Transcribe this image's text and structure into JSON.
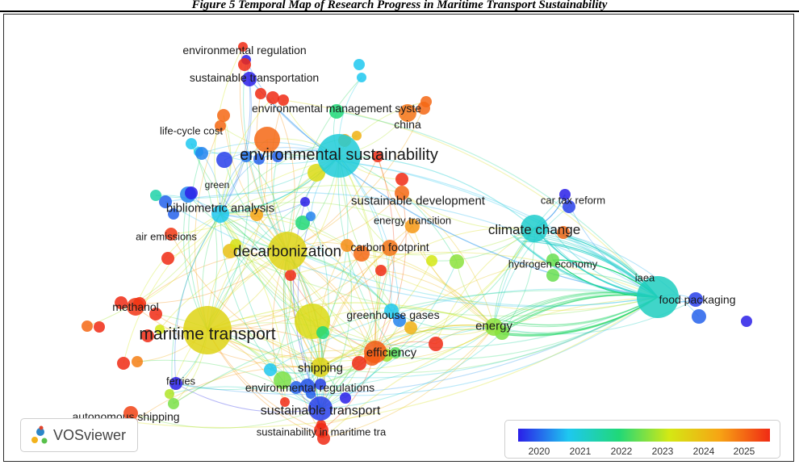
{
  "caption": "Figure 5 Temporal Map of Research Progress in Maritime Transport Sustainability",
  "app": {
    "name": "VOSviewer",
    "logo_icon": "vosviewer-logo-icon"
  },
  "legend": {
    "years": [
      "2020",
      "2021",
      "2022",
      "2023",
      "2024",
      "2025"
    ],
    "colors": [
      "#2a1ee8",
      "#1ec8f0",
      "#20d878",
      "#d4e814",
      "#f7a414",
      "#f02a14"
    ]
  },
  "nodes": [
    {
      "label": "environmental regulation",
      "year": 2025
    },
    {
      "label": "sustainable transportation",
      "year": 2020
    },
    {
      "label": "environmental management syste",
      "year": 2022
    },
    {
      "label": "china",
      "year": 2024.4
    },
    {
      "label": "life-cycle cost",
      "year": 2020.6
    },
    {
      "label": "environmental sustainability",
      "year": 2021.2
    },
    {
      "label": "green",
      "year": 2020
    },
    {
      "label": "bibliometric analysis",
      "year": 2021
    },
    {
      "label": "sustainable development",
      "year": 2024.5
    },
    {
      "label": "energy transition",
      "year": 2024.1
    },
    {
      "label": "air emissions",
      "year": 2024.9
    },
    {
      "label": "decarbonization",
      "year": 2023.3
    },
    {
      "label": "carbon footprint",
      "year": 2024.4
    },
    {
      "label": "car tax reform",
      "year": 2020
    },
    {
      "label": "climate change",
      "year": 2021.3
    },
    {
      "label": "hydrogen economy",
      "year": 2022.4
    },
    {
      "label": "iaea",
      "year": 2021.4
    },
    {
      "label": "food packaging",
      "year": 2020.2
    },
    {
      "label": "methanol",
      "year": 2024.9
    },
    {
      "label": "maritime transport",
      "year": 2023.3
    },
    {
      "label": "greenhouse gases",
      "year": 2021
    },
    {
      "label": "energy",
      "year": 2022.6
    },
    {
      "label": "efficiency",
      "year": 2024.6
    },
    {
      "label": "shipping",
      "year": 2023.3
    },
    {
      "label": "ferries",
      "year": 2020
    },
    {
      "label": "environmental regulations",
      "year": 2020.3
    },
    {
      "label": "autonomous shipping",
      "year": 2024.8
    },
    {
      "label": "sustainable transport",
      "year": 2020.2
    },
    {
      "label": "sustainability in maritime tra",
      "year": 2025
    }
  ]
}
